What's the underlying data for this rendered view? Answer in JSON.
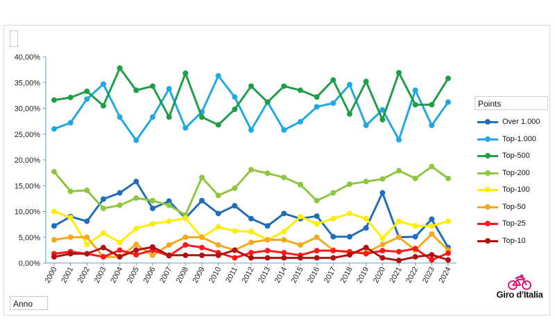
{
  "chart_data": {
    "type": "line",
    "title": "",
    "xlabel": "",
    "ylabel": "",
    "ylim": [
      0,
      40
    ],
    "y_tick_labels": [
      "0,00%",
      "5,00%",
      "10,00%",
      "15,00%",
      "20,00%",
      "25,00%",
      "30,00%",
      "35,00%",
      "40,00%"
    ],
    "x": [
      "2000",
      "2001",
      "2002",
      "2003",
      "2004",
      "2005",
      "2006",
      "2007",
      "2008",
      "2009",
      "2010",
      "2011",
      "2012",
      "2013",
      "2014",
      "2015",
      "2016",
      "2017",
      "2018",
      "2019",
      "2020",
      "2021",
      "2022",
      "2023",
      "2024"
    ],
    "legend_title": "Points",
    "legend_position": "right",
    "grid": false,
    "series": [
      {
        "name": "Over 1.000",
        "color": "#1f6db8",
        "values": [
          7.2,
          9.0,
          8.1,
          12.4,
          13.6,
          15.8,
          10.6,
          12.0,
          8.7,
          12.1,
          9.6,
          11.1,
          8.6,
          7.2,
          9.6,
          8.6,
          9.1,
          5.1,
          5.1,
          6.8,
          13.6,
          5.0,
          5.1,
          8.5,
          3.0
        ]
      },
      {
        "name": "Top-1.000",
        "color": "#22a7e6",
        "values": [
          26.0,
          27.2,
          31.8,
          34.7,
          28.3,
          23.8,
          28.3,
          33.8,
          26.2,
          29.3,
          36.3,
          32.2,
          25.8,
          31.2,
          25.8,
          27.4,
          30.3,
          31.0,
          34.6,
          26.7,
          29.7,
          23.9,
          33.5,
          26.7,
          31.2
        ]
      },
      {
        "name": "Top-500",
        "color": "#1f9e48",
        "values": [
          31.6,
          32.1,
          33.3,
          30.5,
          37.8,
          33.5,
          34.3,
          28.3,
          36.8,
          28.3,
          26.8,
          29.8,
          34.3,
          31.2,
          34.3,
          33.5,
          32.2,
          35.5,
          28.9,
          35.2,
          27.8,
          36.9,
          30.7,
          30.7,
          35.8
        ]
      },
      {
        "name": "Top-200",
        "color": "#8dc63f",
        "values": [
          17.7,
          13.9,
          14.1,
          10.6,
          11.2,
          12.6,
          12.1,
          11.2,
          9.3,
          16.6,
          13.1,
          14.5,
          18.1,
          17.4,
          16.6,
          15.2,
          12.1,
          13.6,
          15.3,
          15.8,
          16.3,
          17.9,
          16.4,
          18.7,
          16.4
        ]
      },
      {
        "name": "Top-100",
        "color": "#ffee00",
        "values": [
          10.0,
          8.8,
          3.6,
          5.8,
          4.0,
          6.7,
          7.6,
          8.1,
          8.7,
          5.0,
          7.0,
          6.2,
          6.1,
          4.5,
          6.1,
          9.0,
          7.6,
          8.6,
          9.6,
          8.6,
          4.8,
          8.1,
          7.2,
          7.2,
          8.1
        ]
      },
      {
        "name": "Top-50",
        "color": "#f4a81d",
        "values": [
          4.5,
          5.0,
          5.0,
          1.2,
          1.2,
          3.6,
          1.5,
          3.5,
          5.0,
          5.0,
          3.5,
          2.5,
          4.0,
          4.5,
          4.5,
          3.5,
          5.0,
          2.5,
          2.0,
          2.0,
          3.6,
          5.0,
          2.5,
          5.6,
          2.5
        ]
      },
      {
        "name": "Top-25",
        "color": "#ff1a1a",
        "values": [
          1.8,
          2.2,
          1.8,
          1.2,
          2.5,
          1.6,
          2.5,
          1.4,
          3.5,
          3.0,
          2.0,
          1.0,
          2.0,
          2.4,
          2.0,
          1.5,
          2.4,
          2.4,
          2.2,
          1.8,
          2.4,
          2.2,
          2.8,
          0.6,
          1.9
        ]
      },
      {
        "name": "Top-10",
        "color": "#b01212",
        "values": [
          1.2,
          1.8,
          1.8,
          3.0,
          1.2,
          2.5,
          3.1,
          1.5,
          1.5,
          1.5,
          1.5,
          2.5,
          1.0,
          1.0,
          1.0,
          1.0,
          1.0,
          1.0,
          1.6,
          3.0,
          1.0,
          0.5,
          1.2,
          1.6,
          0.6
        ]
      }
    ]
  },
  "ui": {
    "axis_box_label": "Anno",
    "logo_text": "Giro d'Italia"
  }
}
